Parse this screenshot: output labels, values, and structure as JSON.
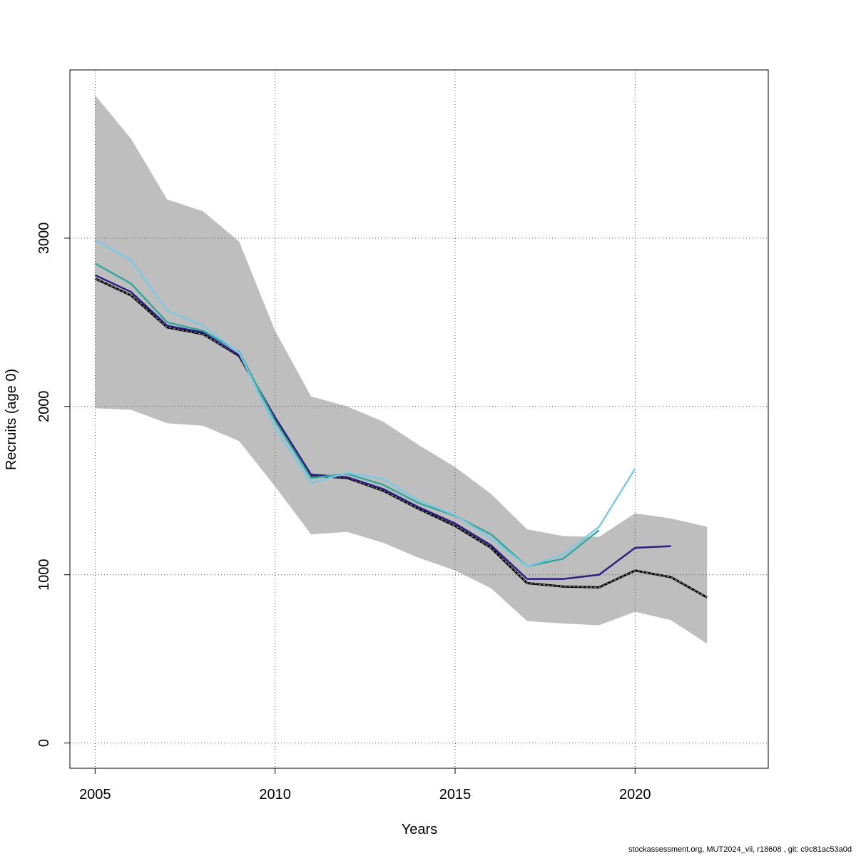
{
  "footer": "stockassessment.org, MUT2024_vii, r18608 , git: c9c81ac53a0d",
  "chart_data": {
    "type": "line",
    "title": "",
    "xlabel": "Years",
    "ylabel": "Recruits (age 0)",
    "xlim": [
      2004.3,
      2023.7
    ],
    "ylim": [
      -150,
      4000
    ],
    "xticks": [
      2005,
      2010,
      2015,
      2020
    ],
    "yticks": [
      0,
      1000,
      2000,
      3000
    ],
    "grid": true,
    "legend": "none",
    "band": {
      "color": "#bebebe",
      "x": [
        2005,
        2006,
        2007,
        2008,
        2009,
        2010,
        2011,
        2012,
        2013,
        2014,
        2015,
        2016,
        2017,
        2018,
        2019,
        2020,
        2021,
        2022
      ],
      "upper": [
        3850,
        3590,
        3230,
        3160,
        2980,
        2450,
        2060,
        2000,
        1910,
        1770,
        1640,
        1480,
        1270,
        1230,
        1225,
        1365,
        1335,
        1285
      ],
      "lower": [
        1990,
        1980,
        1900,
        1885,
        1795,
        1525,
        1240,
        1255,
        1190,
        1100,
        1025,
        920,
        725,
        710,
        700,
        780,
        730,
        590
      ]
    },
    "series": [
      {
        "color": "#000000",
        "dashed": true,
        "x": [
          2005,
          2006,
          2007,
          2008,
          2009,
          2010,
          2011,
          2012,
          2013,
          2014,
          2015,
          2016,
          2017,
          2018,
          2019,
          2020,
          2021,
          2022
        ],
        "values": [
          2760,
          2660,
          2470,
          2430,
          2300,
          1930,
          1590,
          1575,
          1500,
          1390,
          1290,
          1160,
          950,
          930,
          925,
          1025,
          985,
          865
        ]
      },
      {
        "color": "#2b1f83",
        "dashed": false,
        "x": [
          2005,
          2006,
          2007,
          2008,
          2009,
          2010,
          2011,
          2012,
          2013,
          2014,
          2015,
          2016,
          2017,
          2018,
          2019,
          2020,
          2021
        ],
        "values": [
          2780,
          2680,
          2480,
          2440,
          2305,
          1935,
          1595,
          1580,
          1510,
          1400,
          1305,
          1175,
          975,
          975,
          1000,
          1160,
          1170
        ]
      },
      {
        "color": "#35a79c",
        "dashed": false,
        "x": [
          2005,
          2006,
          2007,
          2008,
          2009,
          2010,
          2011,
          2012,
          2013,
          2014,
          2015,
          2016,
          2017,
          2018,
          2019
        ],
        "values": [
          2850,
          2730,
          2500,
          2450,
          2325,
          1915,
          1575,
          1600,
          1535,
          1425,
          1350,
          1240,
          1050,
          1095,
          1265
        ]
      },
      {
        "color": "#7ec8e3",
        "dashed": false,
        "x": [
          2005,
          2006,
          2007,
          2008,
          2009,
          2010,
          2011,
          2012,
          2013,
          2014,
          2015,
          2016,
          2017,
          2018,
          2019,
          2020
        ],
        "values": [
          2990,
          2870,
          2570,
          2480,
          2320,
          1875,
          1545,
          1605,
          1570,
          1440,
          1355,
          1215,
          1050,
          1120,
          1285,
          1630
        ]
      }
    ]
  }
}
